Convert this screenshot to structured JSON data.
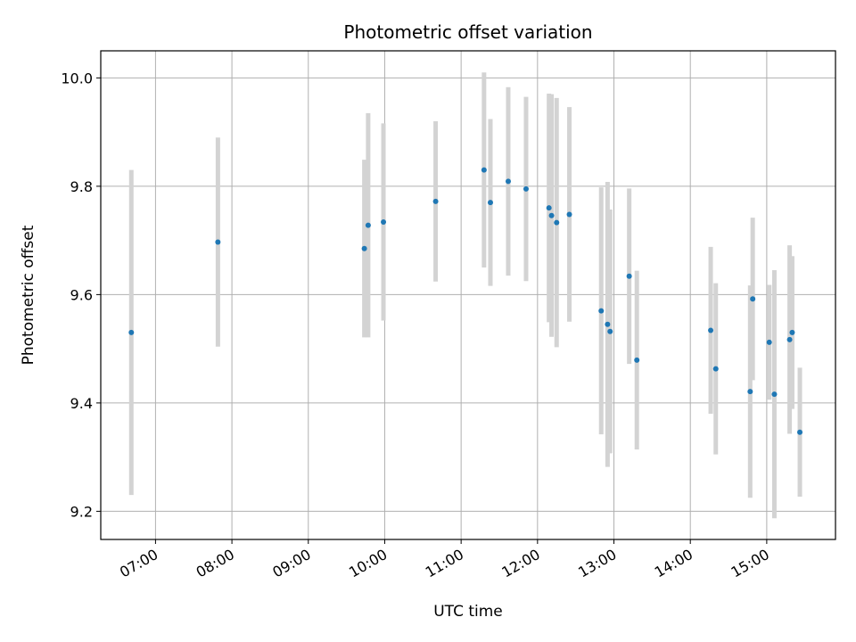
{
  "chart_data": {
    "type": "scatter",
    "title": "Photometric offset variation",
    "xlabel": "UTC time",
    "ylabel": "Photometric offset",
    "xlim": [
      "06:17",
      "15:54"
    ],
    "ylim": [
      9.148,
      10.05
    ],
    "grid": true,
    "x_ticks": [
      "07:00",
      "08:00",
      "09:00",
      "10:00",
      "11:00",
      "12:00",
      "13:00",
      "14:00",
      "15:00"
    ],
    "y_ticks": [
      "9.2",
      "9.4",
      "9.6",
      "9.8",
      "10.0"
    ],
    "colors": {
      "point": "#1f77b4",
      "errorbar": "#d3d3d3",
      "grid": "#b0b0b0"
    },
    "series": [
      {
        "points": [
          {
            "x": "06:41",
            "y": 9.53,
            "yerr": 0.3
          },
          {
            "x": "07:49",
            "y": 9.697,
            "yerr": 0.193
          },
          {
            "x": "09:44",
            "y": 9.685,
            "yerr": 0.164
          },
          {
            "x": "09:47",
            "y": 9.728,
            "yerr": 0.207
          },
          {
            "x": "09:59",
            "y": 9.734,
            "yerr": 0.182
          },
          {
            "x": "10:40",
            "y": 9.772,
            "yerr": 0.148
          },
          {
            "x": "11:18",
            "y": 9.83,
            "yerr": 0.18
          },
          {
            "x": "11:23",
            "y": 9.77,
            "yerr": 0.154
          },
          {
            "x": "11:37",
            "y": 9.809,
            "yerr": 0.174
          },
          {
            "x": "11:51",
            "y": 9.795,
            "yerr": 0.17
          },
          {
            "x": "12:09",
            "y": 9.76,
            "yerr": 0.211
          },
          {
            "x": "12:11",
            "y": 9.746,
            "yerr": 0.224
          },
          {
            "x": "12:15",
            "y": 9.733,
            "yerr": 0.23
          },
          {
            "x": "12:25",
            "y": 9.748,
            "yerr": 0.198
          },
          {
            "x": "12:50",
            "y": 9.57,
            "yerr": 0.228
          },
          {
            "x": "12:55",
            "y": 9.545,
            "yerr": 0.263
          },
          {
            "x": "12:57",
            "y": 9.532,
            "yerr": 0.225
          },
          {
            "x": "13:12",
            "y": 9.634,
            "yerr": 0.162
          },
          {
            "x": "13:18",
            "y": 9.479,
            "yerr": 0.165
          },
          {
            "x": "14:16",
            "y": 9.534,
            "yerr": 0.154
          },
          {
            "x": "14:20",
            "y": 9.463,
            "yerr": 0.158
          },
          {
            "x": "14:47",
            "y": 9.421,
            "yerr": 0.196
          },
          {
            "x": "14:49",
            "y": 9.592,
            "yerr": 0.15
          },
          {
            "x": "15:02",
            "y": 9.512,
            "yerr": 0.106
          },
          {
            "x": "15:06",
            "y": 9.416,
            "yerr": 0.229
          },
          {
            "x": "15:18",
            "y": 9.517,
            "yerr": 0.174
          },
          {
            "x": "15:20",
            "y": 9.53,
            "yerr": 0.141
          },
          {
            "x": "15:26",
            "y": 9.346,
            "yerr": 0.119
          }
        ]
      }
    ]
  }
}
